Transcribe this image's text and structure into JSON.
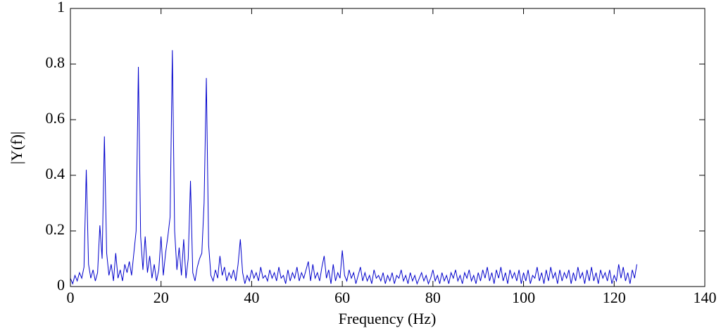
{
  "chart_data": {
    "type": "line",
    "xlabel": "Frequency (Hz)",
    "ylabel": "|Y(f)|",
    "color": "#0000cc",
    "xlim": [
      0,
      140
    ],
    "xticks": [
      0,
      20,
      40,
      60,
      80,
      100,
      120,
      140
    ],
    "ylim": [
      0,
      1
    ],
    "yticks": [
      0,
      0.2,
      0.4,
      0.6,
      0.8,
      1
    ],
    "x": [
      0,
      0.5,
      1,
      1.5,
      2,
      2.5,
      3,
      3.5,
      4,
      4.5,
      5,
      5.5,
      6,
      6.5,
      7,
      7.5,
      8,
      8.5,
      9,
      9.5,
      10,
      10.5,
      11,
      11.5,
      12,
      12.5,
      13,
      13.5,
      14,
      14.5,
      15,
      15.5,
      16,
      16.5,
      17,
      17.5,
      18,
      18.5,
      19,
      19.5,
      20,
      20.5,
      21,
      21.5,
      22,
      22.5,
      23,
      23.5,
      24,
      24.5,
      25,
      25.5,
      26,
      26.5,
      27,
      27.5,
      28,
      28.5,
      29,
      29.5,
      30,
      30.5,
      31,
      31.5,
      32,
      32.5,
      33,
      33.5,
      34,
      34.5,
      35,
      35.5,
      36,
      36.5,
      37,
      37.5,
      38,
      38.5,
      39,
      39.5,
      40,
      40.5,
      41,
      41.5,
      42,
      42.5,
      43,
      43.5,
      44,
      44.5,
      45,
      45.5,
      46,
      46.5,
      47,
      47.5,
      48,
      48.5,
      49,
      49.5,
      50,
      50.5,
      51,
      51.5,
      52,
      52.5,
      53,
      53.5,
      54,
      54.5,
      55,
      55.5,
      56,
      56.5,
      57,
      57.5,
      58,
      58.5,
      59,
      59.5,
      60,
      60.5,
      61,
      61.5,
      62,
      62.5,
      63,
      63.5,
      64,
      64.5,
      65,
      65.5,
      66,
      66.5,
      67,
      67.5,
      68,
      68.5,
      69,
      69.5,
      70,
      70.5,
      71,
      71.5,
      72,
      72.5,
      73,
      73.5,
      74,
      74.5,
      75,
      75.5,
      76,
      76.5,
      77,
      77.5,
      78,
      78.5,
      79,
      79.5,
      80,
      80.5,
      81,
      81.5,
      82,
      82.5,
      83,
      83.5,
      84,
      84.5,
      85,
      85.5,
      86,
      86.5,
      87,
      87.5,
      88,
      88.5,
      89,
      89.5,
      90,
      90.5,
      91,
      91.5,
      92,
      92.5,
      93,
      93.5,
      94,
      94.5,
      95,
      95.5,
      96,
      96.5,
      97,
      97.5,
      98,
      98.5,
      99,
      99.5,
      100,
      100.5,
      101,
      101.5,
      102,
      102.5,
      103,
      103.5,
      104,
      104.5,
      105,
      105.5,
      106,
      106.5,
      107,
      107.5,
      108,
      108.5,
      109,
      109.5,
      110,
      110.5,
      111,
      111.5,
      112,
      112.5,
      113,
      113.5,
      114,
      114.5,
      115,
      115.5,
      116,
      116.5,
      117,
      117.5,
      118,
      118.5,
      119,
      119.5,
      120,
      120.5,
      121,
      121.5,
      122,
      122.5,
      123,
      123.5,
      124,
      124.5,
      125
    ],
    "values": [
      0.03,
      0.01,
      0.04,
      0.02,
      0.05,
      0.03,
      0.07,
      0.42,
      0.08,
      0.03,
      0.06,
      0.02,
      0.05,
      0.22,
      0.1,
      0.54,
      0.12,
      0.04,
      0.08,
      0.02,
      0.12,
      0.03,
      0.06,
      0.02,
      0.08,
      0.05,
      0.09,
      0.04,
      0.12,
      0.2,
      0.79,
      0.18,
      0.06,
      0.18,
      0.05,
      0.11,
      0.03,
      0.08,
      0.02,
      0.06,
      0.18,
      0.04,
      0.12,
      0.18,
      0.25,
      0.85,
      0.2,
      0.06,
      0.14,
      0.04,
      0.17,
      0.03,
      0.1,
      0.38,
      0.05,
      0.02,
      0.07,
      0.1,
      0.12,
      0.3,
      0.75,
      0.15,
      0.04,
      0.02,
      0.06,
      0.03,
      0.11,
      0.04,
      0.07,
      0.02,
      0.05,
      0.03,
      0.06,
      0.02,
      0.08,
      0.17,
      0.05,
      0.01,
      0.04,
      0.02,
      0.06,
      0.03,
      0.05,
      0.02,
      0.07,
      0.03,
      0.04,
      0.02,
      0.06,
      0.03,
      0.05,
      0.02,
      0.07,
      0.03,
      0.04,
      0.01,
      0.06,
      0.02,
      0.05,
      0.03,
      0.07,
      0.02,
      0.05,
      0.03,
      0.06,
      0.09,
      0.02,
      0.08,
      0.03,
      0.05,
      0.02,
      0.07,
      0.11,
      0.03,
      0.06,
      0.01,
      0.08,
      0.02,
      0.05,
      0.03,
      0.13,
      0.04,
      0.02,
      0.06,
      0.03,
      0.05,
      0.01,
      0.04,
      0.07,
      0.02,
      0.05,
      0.02,
      0.04,
      0.01,
      0.06,
      0.03,
      0.04,
      0.02,
      0.05,
      0.01,
      0.04,
      0.02,
      0.05,
      0.01,
      0.04,
      0.03,
      0.06,
      0.02,
      0.04,
      0.01,
      0.05,
      0.02,
      0.04,
      0.01,
      0.03,
      0.05,
      0.02,
      0.04,
      0.01,
      0.03,
      0.06,
      0.02,
      0.04,
      0.01,
      0.05,
      0.02,
      0.04,
      0.01,
      0.05,
      0.03,
      0.06,
      0.02,
      0.04,
      0.01,
      0.05,
      0.03,
      0.06,
      0.02,
      0.04,
      0.01,
      0.05,
      0.02,
      0.06,
      0.03,
      0.07,
      0.02,
      0.05,
      0.01,
      0.06,
      0.03,
      0.07,
      0.02,
      0.05,
      0.01,
      0.06,
      0.03,
      0.05,
      0.02,
      0.06,
      0.01,
      0.05,
      0.02,
      0.06,
      0.01,
      0.04,
      0.03,
      0.07,
      0.02,
      0.05,
      0.01,
      0.06,
      0.02,
      0.07,
      0.03,
      0.05,
      0.01,
      0.06,
      0.02,
      0.05,
      0.03,
      0.06,
      0.01,
      0.05,
      0.02,
      0.07,
      0.03,
      0.05,
      0.01,
      0.06,
      0.02,
      0.07,
      0.02,
      0.05,
      0.01,
      0.06,
      0.03,
      0.05,
      0.02,
      0.06,
      0.01,
      0.04,
      0.02,
      0.08,
      0.03,
      0.07,
      0.02,
      0.05,
      0.01,
      0.06,
      0.03,
      0.08
    ]
  }
}
